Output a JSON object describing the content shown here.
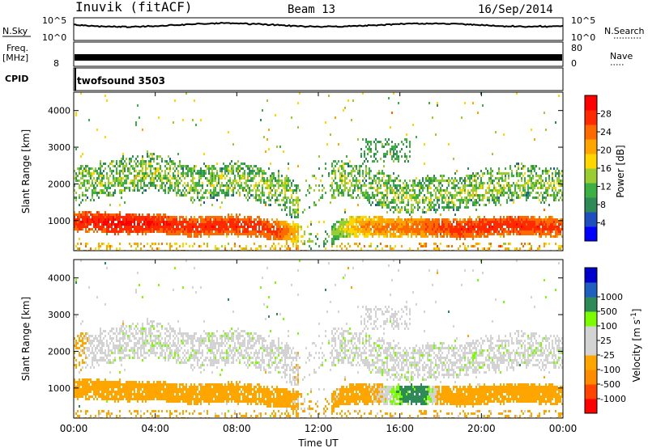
{
  "header": {
    "station": "Inuvik (fitACF)",
    "beam": "Beam 13",
    "date": "16/Sep/2014"
  },
  "top_strips": {
    "nsky_label": "N.Sky",
    "nsky_ticks": [
      "10^5",
      "10^0"
    ],
    "nsearch_label": "N.Search",
    "nsearch_ticks": [
      "10^5",
      "10^0"
    ],
    "freq_label": "Freq.",
    "freq_unit": "[MHz]",
    "freq_ticks": [
      "8"
    ],
    "nave_label": "Nave",
    "nave_ticks": [
      "80",
      "0"
    ],
    "cpid_label": "CPID",
    "cpid_value": "twofsound 3503"
  },
  "colors": {
    "frame": "#000000",
    "power_scale": [
      "#0000ff",
      "#1f4fbf",
      "#2e8b57",
      "#3cb043",
      "#9acd32",
      "#ffd700",
      "#ffa500",
      "#ff6a00",
      "#ff2a00",
      "#ff0000"
    ],
    "velocity_scale": [
      "#ff0000",
      "#ff4500",
      "#ff8c00",
      "#ffa500",
      "#d3d3d3",
      "#d3d3d3",
      "#7cfc00",
      "#2e8b57",
      "#1f5fbf",
      "#0000cd"
    ]
  },
  "chart_data": [
    {
      "type": "heatmap",
      "panel": "power",
      "title": "",
      "xlabel": "",
      "ylabel": "Slant Range [km]",
      "ylim": [
        180,
        4500
      ],
      "xlim": [
        0,
        24
      ],
      "y_ticks": [
        1000,
        2000,
        3000,
        4000
      ],
      "colorbar": {
        "label": "Power [dB]",
        "ticks": [
          4,
          8,
          12,
          16,
          20,
          24,
          28
        ],
        "range": [
          0,
          32
        ]
      },
      "x": [
        0,
        1,
        2,
        3,
        4,
        5,
        6,
        7,
        8,
        9,
        10,
        11,
        12,
        13,
        14,
        15,
        16,
        17,
        18,
        19,
        20,
        21,
        22,
        23,
        24
      ],
      "series": [
        {
          "name": "main_echo_center_km",
          "values": [
            1000,
            1000,
            950,
            950,
            950,
            900,
            850,
            900,
            900,
            850,
            750,
            700,
            400,
            800,
            900,
            850,
            850,
            850,
            850,
            800,
            850,
            900,
            900,
            850,
            850
          ]
        },
        {
          "name": "main_echo_power_db",
          "values": [
            28,
            29,
            30,
            30,
            29,
            28,
            28,
            28,
            28,
            28,
            27,
            20,
            10,
            16,
            22,
            24,
            24,
            25,
            27,
            28,
            28,
            28,
            28,
            27,
            27
          ]
        },
        {
          "name": "upper_echo_center_km",
          "values": [
            2000,
            2100,
            2200,
            2300,
            2400,
            2200,
            2000,
            2100,
            2200,
            2000,
            1900,
            1500,
            2000,
            2200,
            2100,
            1900,
            1700,
            1700,
            1800,
            1800,
            1900,
            2000,
            2100,
            2000,
            2000
          ]
        }
      ]
    },
    {
      "type": "heatmap",
      "panel": "velocity",
      "title": "",
      "xlabel": "Time UT",
      "ylabel": "Slant Range [km]",
      "ylim": [
        180,
        4500
      ],
      "xlim": [
        0,
        24
      ],
      "y_ticks": [
        1000,
        2000,
        3000,
        4000
      ],
      "x_tick_labels": [
        "00:00",
        "04:00",
        "08:00",
        "12:00",
        "16:00",
        "20:00",
        "00:00"
      ],
      "colorbar": {
        "label": "Velocity [m s",
        "label_sup": "-1",
        "label_end": "]",
        "ticks": [
          "-1000",
          "-500",
          "-100",
          "-25",
          "25",
          "100",
          "500",
          "1000"
        ]
      },
      "x": [
        0,
        1,
        2,
        3,
        4,
        5,
        6,
        7,
        8,
        9,
        10,
        11,
        12,
        13,
        14,
        15,
        16,
        17,
        18,
        19,
        20,
        21,
        22,
        23,
        24
      ],
      "series": [
        {
          "name": "main_echo_velocity_ms",
          "values": [
            -300,
            -250,
            -300,
            -300,
            -300,
            -250,
            -300,
            -350,
            -300,
            -300,
            -250,
            -100,
            -150,
            -150,
            -200,
            -100,
            100,
            200,
            -200,
            -300,
            -400,
            -350,
            -400,
            -300,
            -300
          ]
        },
        {
          "name": "upper_echo_velocity_ms",
          "values": [
            -150,
            -50,
            0,
            0,
            0,
            0,
            0,
            0,
            0,
            0,
            0,
            -100,
            0,
            0,
            0,
            0,
            0,
            0,
            0,
            0,
            0,
            0,
            0,
            0,
            0
          ]
        }
      ]
    }
  ]
}
